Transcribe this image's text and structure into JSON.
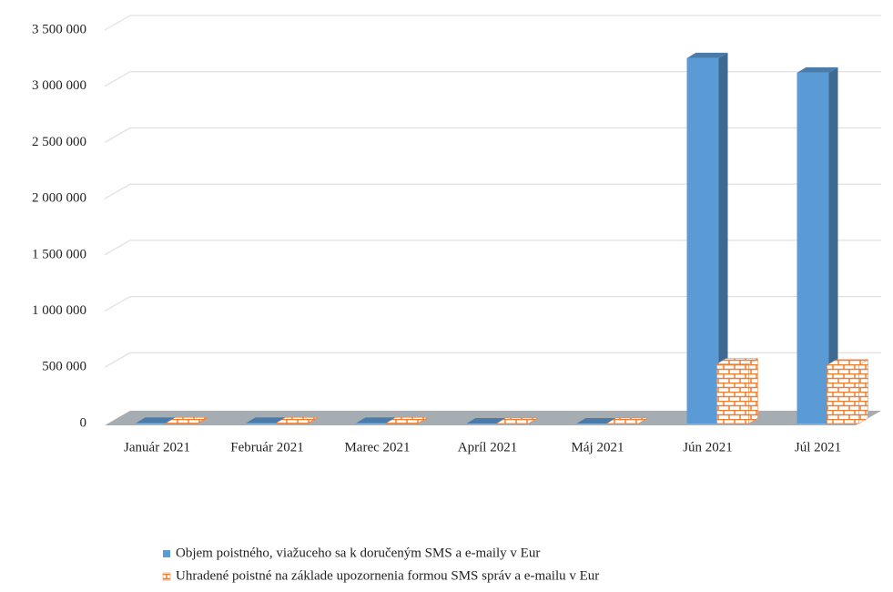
{
  "chart_data": {
    "type": "bar3d",
    "categories": [
      "Január 2021",
      "Február 2021",
      "Marec 2021",
      "Apríl 2021",
      "Máj 2021",
      "Jún 2021",
      "Júl 2021"
    ],
    "series": [
      {
        "name": "Objem poistného, viažuceho sa k doručeným SMS a e-maily v Eur",
        "color": "#5b9bd5",
        "pattern": "solid",
        "values": [
          5000,
          5000,
          5000,
          0,
          0,
          3250000,
          3120000
        ]
      },
      {
        "name": "Uhradené poistné na základe upozornenia formou SMS správ a e-mailu v Eur",
        "color": "#ed7d31",
        "pattern": "brick",
        "values": [
          5000,
          5000,
          5000,
          0,
          0,
          530000,
          520000
        ]
      }
    ],
    "ylim": [
      0,
      3500000
    ],
    "yticks": [
      0,
      {
        "value": 500000,
        "label": "500 000"
      },
      {
        "value": 1000000,
        "label": "1 000 000"
      },
      {
        "value": 1500000,
        "label": "1 500 000"
      },
      {
        "value": 2000000,
        "label": "2 000 000"
      },
      {
        "value": 2500000,
        "label": "2 500 000"
      },
      {
        "value": 3000000,
        "label": "3 000 000"
      },
      {
        "value": 3500000,
        "label": "3 500 000"
      }
    ],
    "grid": true,
    "legend": "bottom"
  }
}
